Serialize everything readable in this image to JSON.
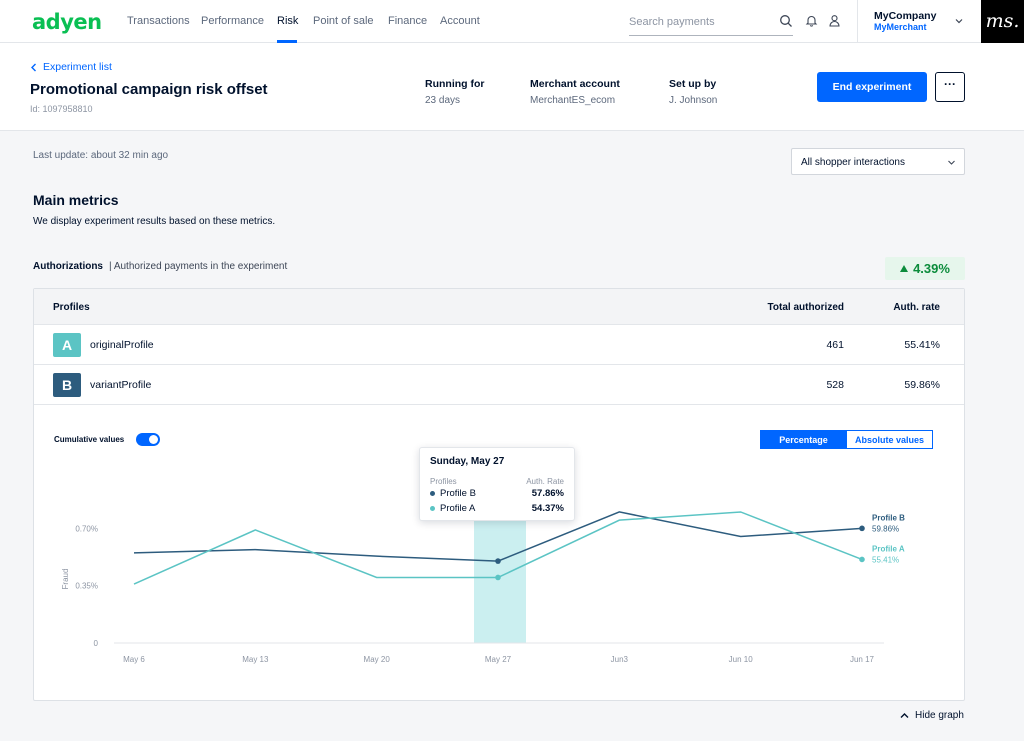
{
  "brand": {
    "logo": "adyen",
    "accent": "#0066ff",
    "logo_color": "#0abf53"
  },
  "nav": {
    "items": [
      "Transactions",
      "Performance",
      "Risk",
      "Point of sale",
      "Finance",
      "Account"
    ],
    "active": "Risk"
  },
  "search": {
    "placeholder": "Search payments"
  },
  "account": {
    "company": "MyCompany",
    "merchant": "MyMerchant"
  },
  "corner_logo": "ms.",
  "header": {
    "back_label": "Experiment list",
    "title": "Promotional campaign risk offset",
    "id_text": "Id: 1097958810",
    "running_label": "Running for",
    "running_value": "23 days",
    "merchant_label": "Merchant account",
    "merchant_value": "MerchantES_ecom",
    "setup_label": "Set up by",
    "setup_value": "J. Johnson",
    "end_button": "End experiment",
    "more_button": "···"
  },
  "last_update": "Last update: about 32 min ago",
  "filter": {
    "selected": "All shopper interactions"
  },
  "main_metrics": {
    "title": "Main metrics",
    "description": "We display experiment results based on these metrics."
  },
  "authorizations": {
    "title": "Authorizations",
    "subtitle": "| Authorized payments in the experiment",
    "uplift": "4.39%"
  },
  "table": {
    "headers": {
      "profiles": "Profiles",
      "total": "Total authorized",
      "rate": "Auth. rate"
    },
    "rows": [
      {
        "letter": "A",
        "name": "originalProfile",
        "total": "461",
        "rate": "55.41%",
        "color": "#5bc4c4"
      },
      {
        "letter": "B",
        "name": "variantProfile",
        "total": "528",
        "rate": "59.86%",
        "color": "#2d5c7e"
      }
    ]
  },
  "chart_controls": {
    "cumulative_label": "Cumulative values",
    "cumulative_on": true,
    "percentage": "Percentage",
    "absolute": "Absolute values",
    "selected": "Percentage"
  },
  "tooltip": {
    "date": "Sunday, May 27",
    "col_profiles": "Profiles",
    "col_rate": "Auth. Rate",
    "b_label": "Profile B",
    "b_value": "57.86%",
    "a_label": "Profile A",
    "a_value": "54.37%"
  },
  "chart_data": {
    "type": "line",
    "x": [
      "May 6",
      "May 13",
      "May 20",
      "May 27",
      "Jun3",
      "Jun 10",
      "Jun 17"
    ],
    "ylabel": "Fraud",
    "yticks": [
      "0",
      "0.35%",
      "0.70%"
    ],
    "ylim": [
      0,
      1.05
    ],
    "highlight_category": "May 27",
    "series": [
      {
        "name": "Profile B",
        "color": "#2d5c7e",
        "end_label": "Profile B",
        "end_value": "59.86%",
        "values": [
          0.55,
          0.57,
          0.53,
          0.5,
          0.8,
          0.65,
          0.7
        ]
      },
      {
        "name": "Profile A",
        "color": "#5bc4c4",
        "end_label": "Profile A",
        "end_value": "55.41%",
        "values": [
          0.36,
          0.69,
          0.4,
          0.4,
          0.75,
          0.8,
          0.51
        ]
      }
    ]
  },
  "footer": {
    "hide_graph": "Hide graph"
  }
}
